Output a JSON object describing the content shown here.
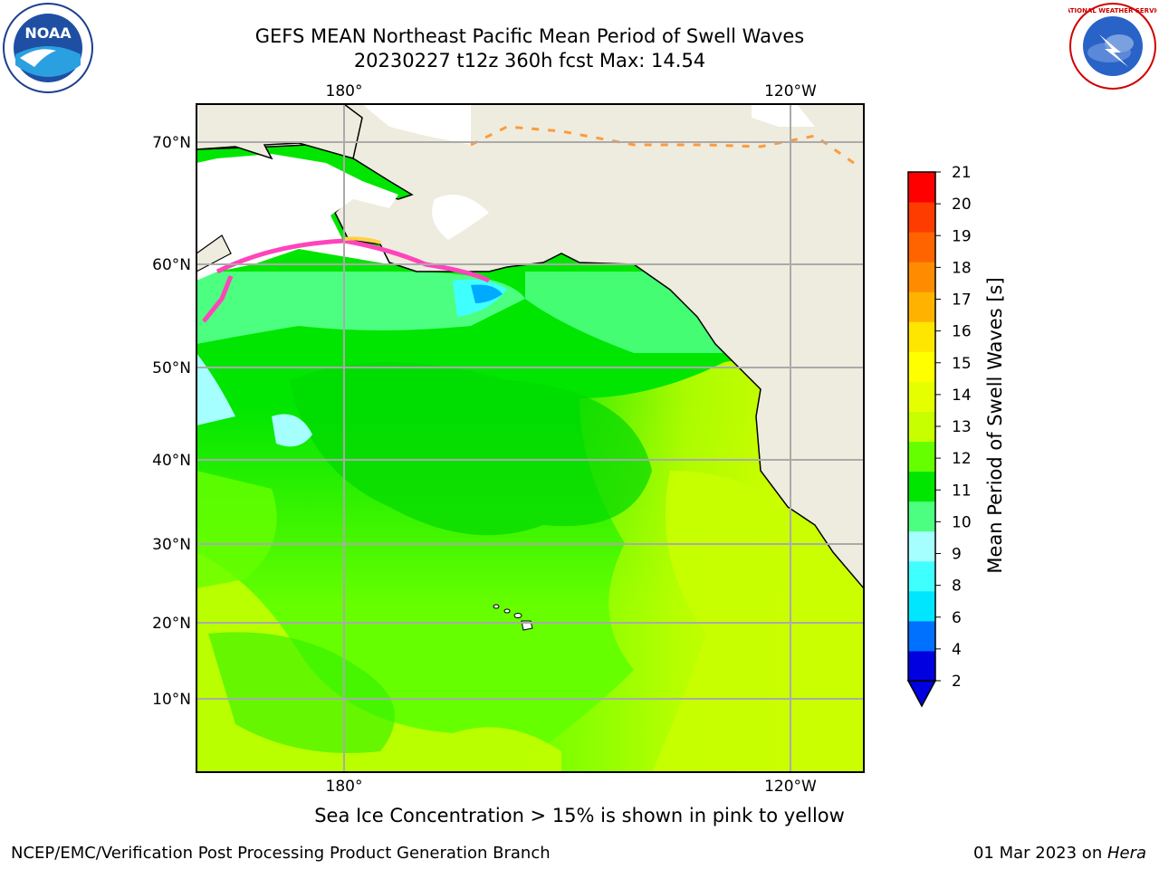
{
  "header": {
    "title_line1": "GEFS MEAN Northeast Pacific Mean Period of Swell Waves",
    "title_line2": "20230227 t12z 360h fcst   Max: 14.54"
  },
  "logos": {
    "left": "NOAA",
    "right": "NATIONAL WEATHER SERVICE"
  },
  "map": {
    "top_labels": [
      "180°",
      "120°W"
    ],
    "bottom_labels": [
      "180°",
      "120°W"
    ],
    "lat_labels": [
      "70°N",
      "60°N",
      "50°N",
      "40°N",
      "30°N",
      "20°N",
      "10°N"
    ],
    "land_color": "#eeecde",
    "ice_colors": [
      "#ff44bb",
      "#ff9a3c",
      "#ffd23a"
    ]
  },
  "colorbar": {
    "label": "Mean Period of Swell Waves [s]",
    "ticks": [
      "21",
      "20",
      "19",
      "18",
      "17",
      "16",
      "15",
      "14",
      "13",
      "12",
      "11",
      "10",
      "9",
      "8",
      "6",
      "4",
      "2"
    ],
    "colors": [
      "#0000e0",
      "#0070ff",
      "#00e6ff",
      "#40ffff",
      "#a6ffff",
      "#4dff80",
      "#00e600",
      "#66ff00",
      "#c8ff00",
      "#e6ff00",
      "#ffff00",
      "#ffe600",
      "#ffb300",
      "#ff8c00",
      "#ff6400",
      "#ff3c00",
      "#ff0000"
    ]
  },
  "caption": "Sea Ice Concentration > 15% is shown in pink to yellow",
  "footer": {
    "left": "NCEP/EMC/Verification Post Processing Product Generation Branch",
    "right_prefix": "01 Mar 2023 on ",
    "right_italic": "Hera"
  }
}
